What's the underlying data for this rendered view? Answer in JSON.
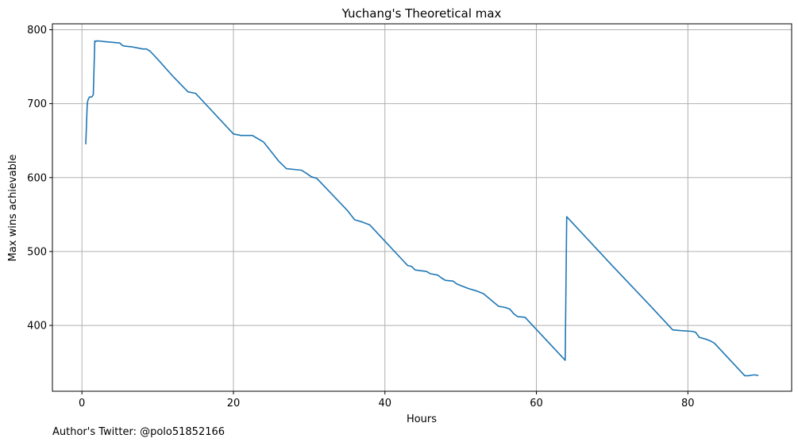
{
  "chart_data": {
    "type": "line",
    "title": "Yuchang's Theoretical max",
    "xlabel": "Hours",
    "ylabel": "Max wins achievable",
    "xlim": [
      -3.9,
      93.7
    ],
    "ylim": [
      311,
      808
    ],
    "xticks": [
      0,
      20,
      40,
      60,
      80
    ],
    "yticks": [
      400,
      500,
      600,
      700,
      800
    ],
    "grid": true,
    "color": "#1f77b4",
    "series": [
      {
        "x": [
          0.5,
          0.7,
          0.8,
          1.0,
          1.3,
          1.5,
          1.7,
          1.8,
          2.0,
          3.0,
          4.0,
          5.0,
          5.3,
          5.5,
          6.5,
          7.5,
          8.0,
          8.5,
          9.0,
          10.0,
          12.0,
          14.0,
          15.0,
          20.0,
          21.0,
          22.0,
          22.5,
          23.0,
          24.0,
          26.0,
          27.0,
          28.0,
          29.0,
          29.6,
          30.3,
          31.0,
          35.0,
          36.0,
          37.0,
          38.0,
          40.0,
          43.0,
          43.5,
          44.0,
          45.5,
          46.0,
          47.0,
          47.5,
          48.0,
          49.0,
          49.5,
          50.0,
          51.0,
          52.0,
          53.0,
          55.0,
          56.0,
          56.5,
          57.0,
          57.5,
          58.5,
          63.8,
          64.0,
          70.0,
          75.0,
          77.0,
          78.0,
          79.0,
          80.5,
          81.0,
          81.5,
          82.5,
          83.0,
          83.5,
          87.5,
          88.0,
          88.6,
          89.0,
          89.3
        ],
        "y": [
          645,
          700,
          705,
          709,
          709,
          712,
          785,
          784,
          785,
          784,
          783,
          782,
          779,
          778,
          777,
          775,
          774,
          774,
          771,
          760,
          737,
          716,
          714,
          659,
          657,
          657,
          657,
          654,
          648,
          622,
          612,
          611,
          610,
          606,
          601,
          599,
          556,
          543,
          540,
          536,
          514,
          481,
          480,
          475,
          473,
          470,
          468,
          464,
          461,
          460,
          456,
          454,
          450,
          447,
          443,
          426,
          424,
          422,
          416,
          412,
          411,
          353,
          547,
          481,
          427,
          405,
          394,
          393,
          392,
          391,
          384,
          381,
          379,
          376,
          332,
          332,
          333,
          333,
          332
        ]
      }
    ]
  },
  "footer": {
    "author": "Author's Twitter: @polo51852166"
  }
}
